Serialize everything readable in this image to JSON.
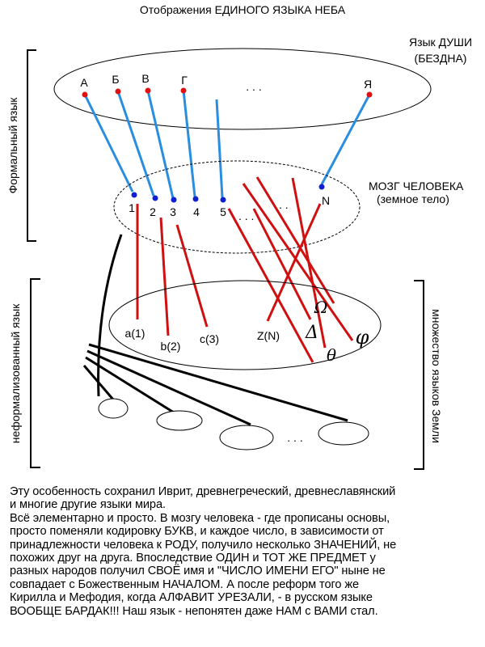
{
  "title": "Отображения ЕДИНОГО ЯЗЫКА НЕБА",
  "soul": {
    "label1": "Язык ДУШИ",
    "label2": "(БЕЗДНА)",
    "letters": [
      "А",
      "Б",
      "В",
      "Г",
      "Я"
    ],
    "ellipsis": ". . ."
  },
  "brain": {
    "label1": "МОЗГ ЧЕЛОВЕКА",
    "label2": "(земное тело)",
    "numbers": [
      "1",
      "2",
      "3",
      "4",
      "5",
      "N"
    ],
    "ellipsis1": ". . .",
    "ellipsis2": ". ."
  },
  "earth": {
    "labels": [
      "a(1)",
      "b(2)",
      "c(3)",
      "Z(N)"
    ],
    "greek": [
      "Ω",
      "Δ",
      "φ",
      "θ"
    ],
    "ellipsis": ". . ."
  },
  "side_labels": {
    "formal": "Формальный язык",
    "informal": "неформализованный язык",
    "many": "множество языков Земли"
  },
  "colors": {
    "soul_dots": "#e01010",
    "brain_dots": "#1020d0",
    "blue_lines": "#2a8ee0",
    "red_lines": "#d01010"
  },
  "text_lines": [
    "Эту особенность сохранил Иврит, древнегреческий, древнеславянский",
    "и многие другие языки мира.",
    "Всё элементарно и просто. В мозгу человека - где прописаны основы,",
    "просто поменяли кодировку БУКВ, и каждое число, в зависимости от",
    "принадлежности человека к РОДУ, получило несколько ЗНАЧЕНИЙ, не",
    "похожих друг на друга. Впоследствие ОДИН и ТОТ ЖЕ ПРЕДМЕТ у",
    "разных народов получил СВОЁ имя и \"ЧИСЛО ИМЕНИ ЕГО\" ныне не",
    "совпадает с Божественным НАЧАЛОМ. А после реформ того же",
    "Кирилла и Мефодия, когда АЛФАВИТ УРЕЗАЛИ, - в русском языке",
    "ВООБЩЕ БАРДАК!!! Наш язык - непонятен даже НАМ с ВАМИ стал."
  ]
}
